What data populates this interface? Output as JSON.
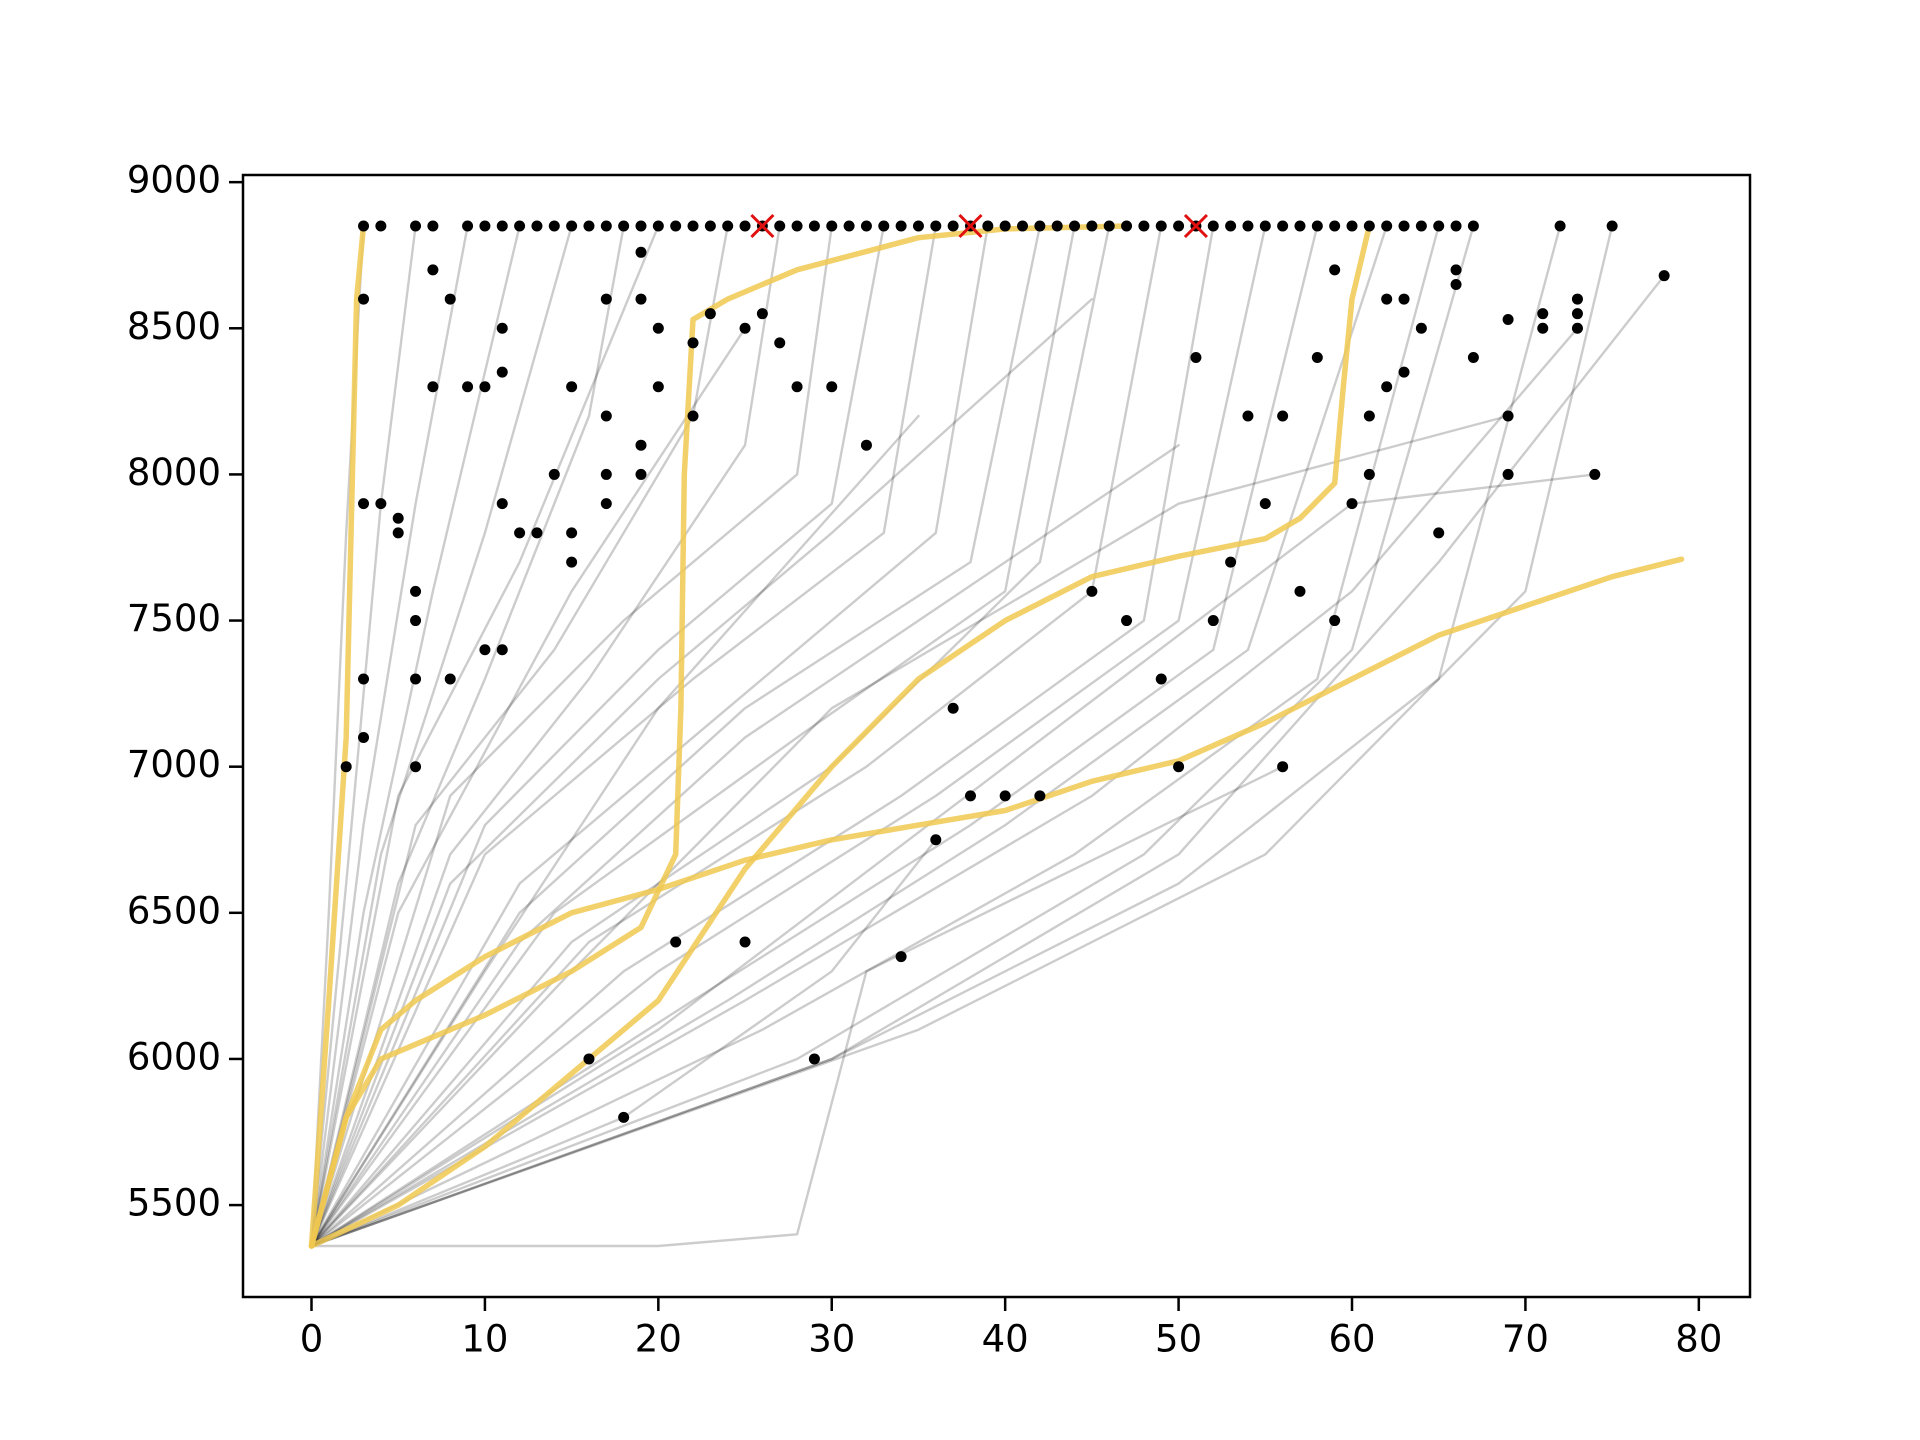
{
  "chart_data": {
    "type": "line",
    "xlim": [
      -3.95,
      82.95
    ],
    "ylim": [
      5185.5,
      9024.5
    ],
    "xticks": [
      0,
      10,
      20,
      30,
      40,
      50,
      60,
      70,
      80
    ],
    "yticks": [
      5500,
      6000,
      6500,
      7000,
      7500,
      8000,
      8500,
      9000
    ],
    "grid": false,
    "background_lines": {
      "color": "#000000",
      "opacity": 0.2,
      "lines": [
        {
          "x": [
            0,
            1,
            2,
            3
          ],
          "values": [
            5360,
            6500,
            7800,
            8850
          ]
        },
        {
          "x": [
            0,
            2,
            4,
            6
          ],
          "values": [
            5360,
            6600,
            7900,
            8850
          ]
        },
        {
          "x": [
            0,
            3,
            6,
            9
          ],
          "values": [
            5360,
            6800,
            7900,
            8850
          ]
        },
        {
          "x": [
            0,
            3,
            7,
            12
          ],
          "values": [
            5360,
            6500,
            7600,
            8850
          ]
        },
        {
          "x": [
            0,
            4,
            10,
            15
          ],
          "values": [
            5360,
            6700,
            7800,
            8850
          ]
        },
        {
          "x": [
            0,
            5,
            10,
            16,
            18
          ],
          "values": [
            5360,
            6600,
            7300,
            8200,
            8850
          ]
        },
        {
          "x": [
            0,
            5,
            12,
            20
          ],
          "values": [
            5360,
            6900,
            7700,
            8850
          ]
        },
        {
          "x": [
            0,
            6,
            14,
            22,
            24
          ],
          "values": [
            5360,
            6800,
            7400,
            8200,
            8850
          ]
        },
        {
          "x": [
            0,
            8,
            16,
            25,
            27
          ],
          "values": [
            5360,
            6700,
            7300,
            8100,
            8850
          ]
        },
        {
          "x": [
            0,
            8,
            18,
            28,
            30
          ],
          "values": [
            5360,
            6900,
            7500,
            8000,
            8850
          ]
        },
        {
          "x": [
            0,
            10,
            20,
            30,
            33
          ],
          "values": [
            5360,
            6800,
            7400,
            7900,
            8850
          ]
        },
        {
          "x": [
            0,
            10,
            22,
            33,
            36
          ],
          "values": [
            5360,
            6700,
            7300,
            7800,
            8850
          ]
        },
        {
          "x": [
            0,
            12,
            24,
            36,
            39
          ],
          "values": [
            5360,
            6600,
            7200,
            7800,
            8850
          ]
        },
        {
          "x": [
            0,
            12,
            25,
            38,
            42
          ],
          "values": [
            5360,
            6500,
            7200,
            7700,
            8850
          ]
        },
        {
          "x": [
            0,
            14,
            28,
            40,
            44
          ],
          "values": [
            5360,
            6500,
            7100,
            7600,
            8850
          ]
        },
        {
          "x": [
            0,
            15,
            30,
            42,
            46
          ],
          "values": [
            5360,
            6400,
            7000,
            7700,
            8850
          ]
        },
        {
          "x": [
            0,
            16,
            32,
            45,
            49
          ],
          "values": [
            5360,
            6400,
            7000,
            7600,
            8850
          ]
        },
        {
          "x": [
            0,
            18,
            34,
            48,
            52
          ],
          "values": [
            5360,
            6300,
            6900,
            7500,
            8850
          ]
        },
        {
          "x": [
            0,
            20,
            36,
            50,
            55
          ],
          "values": [
            5360,
            6300,
            6900,
            7500,
            8850
          ]
        },
        {
          "x": [
            0,
            22,
            38,
            52,
            58
          ],
          "values": [
            5360,
            6200,
            6800,
            7400,
            8850
          ]
        },
        {
          "x": [
            0,
            24,
            40,
            54,
            62
          ],
          "values": [
            5360,
            6200,
            6800,
            7400,
            8850
          ]
        },
        {
          "x": [
            0,
            26,
            44,
            58,
            65
          ],
          "values": [
            5360,
            6100,
            6700,
            7300,
            8850
          ]
        },
        {
          "x": [
            0,
            28,
            48,
            60,
            67
          ],
          "values": [
            5360,
            6000,
            6700,
            7400,
            8850
          ]
        },
        {
          "x": [
            0,
            30,
            50,
            65,
            72
          ],
          "values": [
            5360,
            6000,
            6600,
            7300,
            8850
          ]
        },
        {
          "x": [
            0,
            35,
            55,
            70,
            75
          ],
          "values": [
            5360,
            6100,
            6700,
            7600,
            8850
          ]
        },
        {
          "x": [
            0,
            25,
            45,
            60,
            73
          ],
          "values": [
            5360,
            6200,
            6900,
            7600,
            8500
          ]
        },
        {
          "x": [
            0,
            30,
            50,
            65,
            78
          ],
          "values": [
            5360,
            6000,
            6700,
            7700,
            8680
          ]
        },
        {
          "x": [
            0,
            20,
            40,
            60,
            74
          ],
          "values": [
            5360,
            6100,
            7000,
            7900,
            8000
          ]
        },
        {
          "x": [
            0,
            15,
            30,
            50,
            69
          ],
          "values": [
            5360,
            6300,
            7200,
            7900,
            8200
          ]
        },
        {
          "x": [
            0,
            20,
            28,
            32,
            56
          ],
          "values": [
            5360,
            5360,
            5400,
            6300,
            7000
          ]
        },
        {
          "x": [
            0,
            10,
            20,
            35
          ],
          "values": [
            5360,
            6300,
            7200,
            8200
          ]
        },
        {
          "x": [
            0,
            5,
            15,
            25
          ],
          "values": [
            5360,
            6500,
            7600,
            8500
          ]
        },
        {
          "x": [
            0,
            8,
            20,
            30,
            45
          ],
          "values": [
            5360,
            6600,
            7300,
            7800,
            8600
          ]
        },
        {
          "x": [
            0,
            12,
            25,
            35,
            50
          ],
          "values": [
            5360,
            6400,
            7100,
            7500,
            8100
          ]
        },
        {
          "x": [
            0,
            18,
            30,
            36
          ],
          "values": [
            5360,
            5800,
            6300,
            6750
          ]
        }
      ]
    },
    "highlighted_lines": {
      "color": "#f0c850",
      "opacity": 0.85,
      "lines": [
        {
          "x": [
            0,
            1,
            2,
            2.6,
            3
          ],
          "values": [
            5360,
            6200,
            7100,
            8600,
            8850
          ]
        },
        {
          "x": [
            0,
            2,
            4,
            6,
            10,
            15,
            19,
            21,
            21.3,
            21.5,
            22,
            24,
            28,
            35,
            40,
            47
          ],
          "values": [
            5360,
            5800,
            6000,
            6050,
            6150,
            6300,
            6450,
            6700,
            7200,
            8000,
            8530,
            8600,
            8700,
            8810,
            8840,
            8850
          ]
        },
        {
          "x": [
            0,
            2,
            4,
            6,
            10,
            15,
            20,
            25,
            30,
            35,
            40,
            45,
            50,
            55,
            60,
            65,
            70,
            75,
            79
          ],
          "values": [
            5360,
            5800,
            6100,
            6200,
            6350,
            6500,
            6580,
            6680,
            6750,
            6800,
            6850,
            6950,
            7020,
            7150,
            7300,
            7450,
            7550,
            7650,
            7710
          ]
        },
        {
          "x": [
            0,
            5,
            10,
            15,
            20,
            25,
            30,
            35,
            40,
            45,
            50,
            55,
            57,
            59,
            59.5,
            60,
            61
          ],
          "values": [
            5360,
            5500,
            5700,
            5950,
            6200,
            6650,
            7000,
            7300,
            7500,
            7650,
            7720,
            7780,
            7850,
            7970,
            8300,
            8600,
            8850
          ]
        }
      ]
    },
    "end_points": {
      "color": "#000000",
      "x": [
        3,
        4,
        6,
        7,
        9,
        10,
        11,
        12,
        13,
        14,
        15,
        16,
        17,
        18,
        19,
        20,
        21,
        22,
        23,
        24,
        25,
        26,
        27,
        28,
        29,
        30,
        31,
        32,
        33,
        34,
        35,
        36,
        37,
        38,
        39,
        40,
        41,
        42,
        43,
        44,
        45,
        46,
        47,
        48,
        49,
        50,
        51,
        52,
        53,
        54,
        55,
        56,
        57,
        58,
        59,
        60,
        61,
        62,
        63,
        64,
        65,
        66,
        67,
        72,
        75,
        2,
        3,
        3,
        3,
        3,
        4,
        5,
        5,
        6,
        6,
        6,
        6,
        7,
        7,
        8,
        8,
        9,
        10,
        10,
        11,
        11,
        11,
        11,
        12,
        13,
        14,
        15,
        15,
        15,
        16,
        17,
        17,
        17,
        17,
        18,
        19,
        19,
        19,
        19,
        20,
        20,
        21,
        22,
        22,
        23,
        25,
        25,
        26,
        27,
        28,
        29,
        30,
        32,
        34,
        36,
        37,
        38,
        40,
        42,
        45,
        47,
        49,
        50,
        51,
        52,
        53,
        54,
        55,
        56,
        56,
        57,
        58,
        59,
        59,
        60,
        61,
        61,
        62,
        62,
        63,
        63,
        64,
        65,
        66,
        66,
        67,
        69,
        69,
        69,
        71,
        71,
        73,
        73,
        73,
        74,
        78
      ],
      "values": [
        8850,
        8850,
        8850,
        8850,
        8850,
        8850,
        8850,
        8850,
        8850,
        8850,
        8850,
        8850,
        8850,
        8850,
        8850,
        8850,
        8850,
        8850,
        8850,
        8850,
        8850,
        8850,
        8850,
        8850,
        8850,
        8850,
        8850,
        8850,
        8850,
        8850,
        8850,
        8850,
        8850,
        8850,
        8850,
        8850,
        8850,
        8850,
        8850,
        8850,
        8850,
        8850,
        8850,
        8850,
        8850,
        8850,
        8850,
        8850,
        8850,
        8850,
        8850,
        8850,
        8850,
        8850,
        8850,
        8850,
        8850,
        8850,
        8850,
        8850,
        8850,
        8850,
        8850,
        8850,
        8850,
        7000,
        8600,
        7900,
        7300,
        7100,
        7900,
        7850,
        7800,
        7600,
        7500,
        7300,
        7000,
        8700,
        8300,
        8600,
        7300,
        8300,
        8300,
        7400,
        8500,
        8350,
        7900,
        7400,
        7800,
        7800,
        8000,
        8300,
        7800,
        7700,
        6000,
        8600,
        8200,
        8000,
        7900,
        5800,
        8760,
        8600,
        8100,
        8000,
        8500,
        8300,
        6400,
        8450,
        8200,
        8550,
        6400,
        8500,
        8550,
        8450,
        8300,
        6000,
        8300,
        8100,
        6350,
        6750,
        7200,
        6900,
        6900,
        6900,
        7600,
        7500,
        7300,
        7000,
        8400,
        7500,
        7700,
        8200,
        7900,
        7000,
        8200,
        7600,
        8400,
        7500,
        8700,
        7900,
        8000,
        8200,
        8600,
        8300,
        8600,
        8350,
        8500,
        7800,
        8700,
        8650,
        8400,
        8530,
        8200,
        8000,
        8550,
        8500,
        8600,
        8550,
        8500,
        8000,
        8680
      ]
    },
    "best_points": {
      "color": "#e01010",
      "marker": "x",
      "x": [
        26,
        38,
        51
      ],
      "values": [
        8850,
        8850,
        8850
      ]
    }
  }
}
